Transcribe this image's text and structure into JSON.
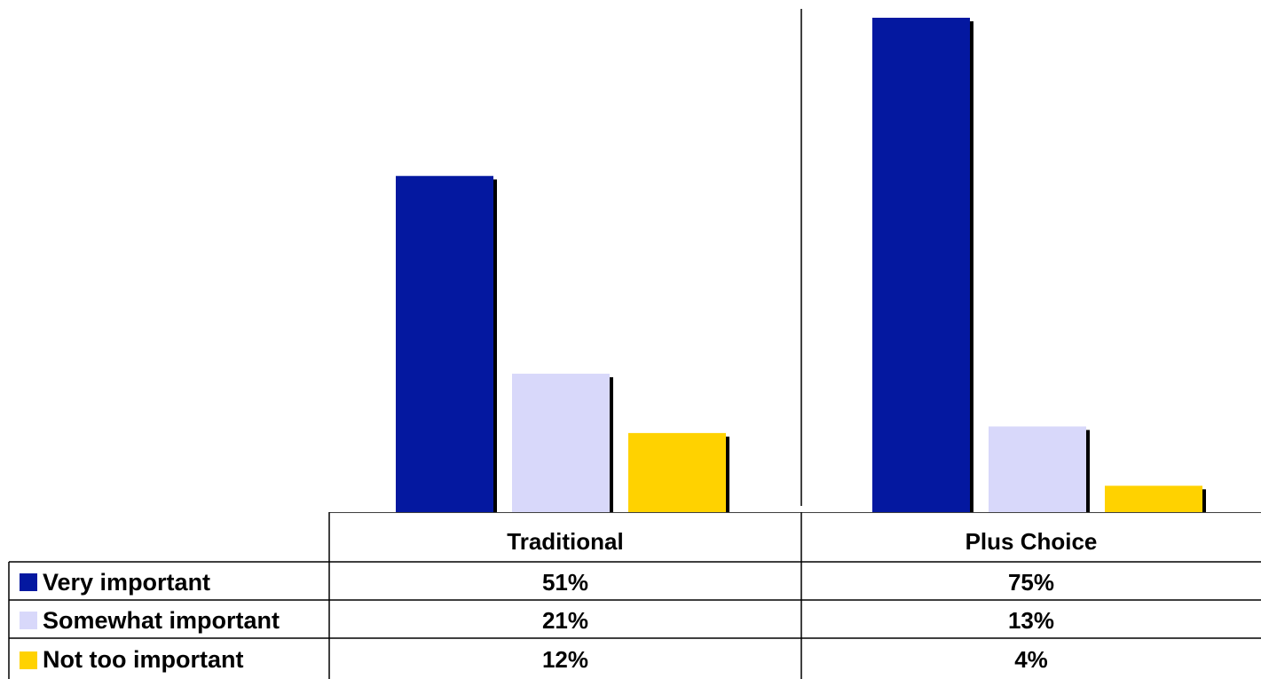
{
  "chart_data": {
    "type": "bar",
    "categories": [
      "Traditional",
      "Plus Choice"
    ],
    "series": [
      {
        "name": "Very important",
        "values": [
          51,
          75
        ],
        "labels": [
          "51%",
          "75%"
        ],
        "color": "#0418A0"
      },
      {
        "name": "Somewhat important",
        "values": [
          21,
          13
        ],
        "labels": [
          "21%",
          "13%"
        ],
        "color": "#D8D8FA"
      },
      {
        "name": "Not too important",
        "values": [
          12,
          4
        ],
        "labels": [
          "12%",
          "4%"
        ],
        "color": "#FFD200"
      }
    ],
    "ylim": [
      0,
      75
    ],
    "grid": false,
    "legend": "data-table-left"
  }
}
